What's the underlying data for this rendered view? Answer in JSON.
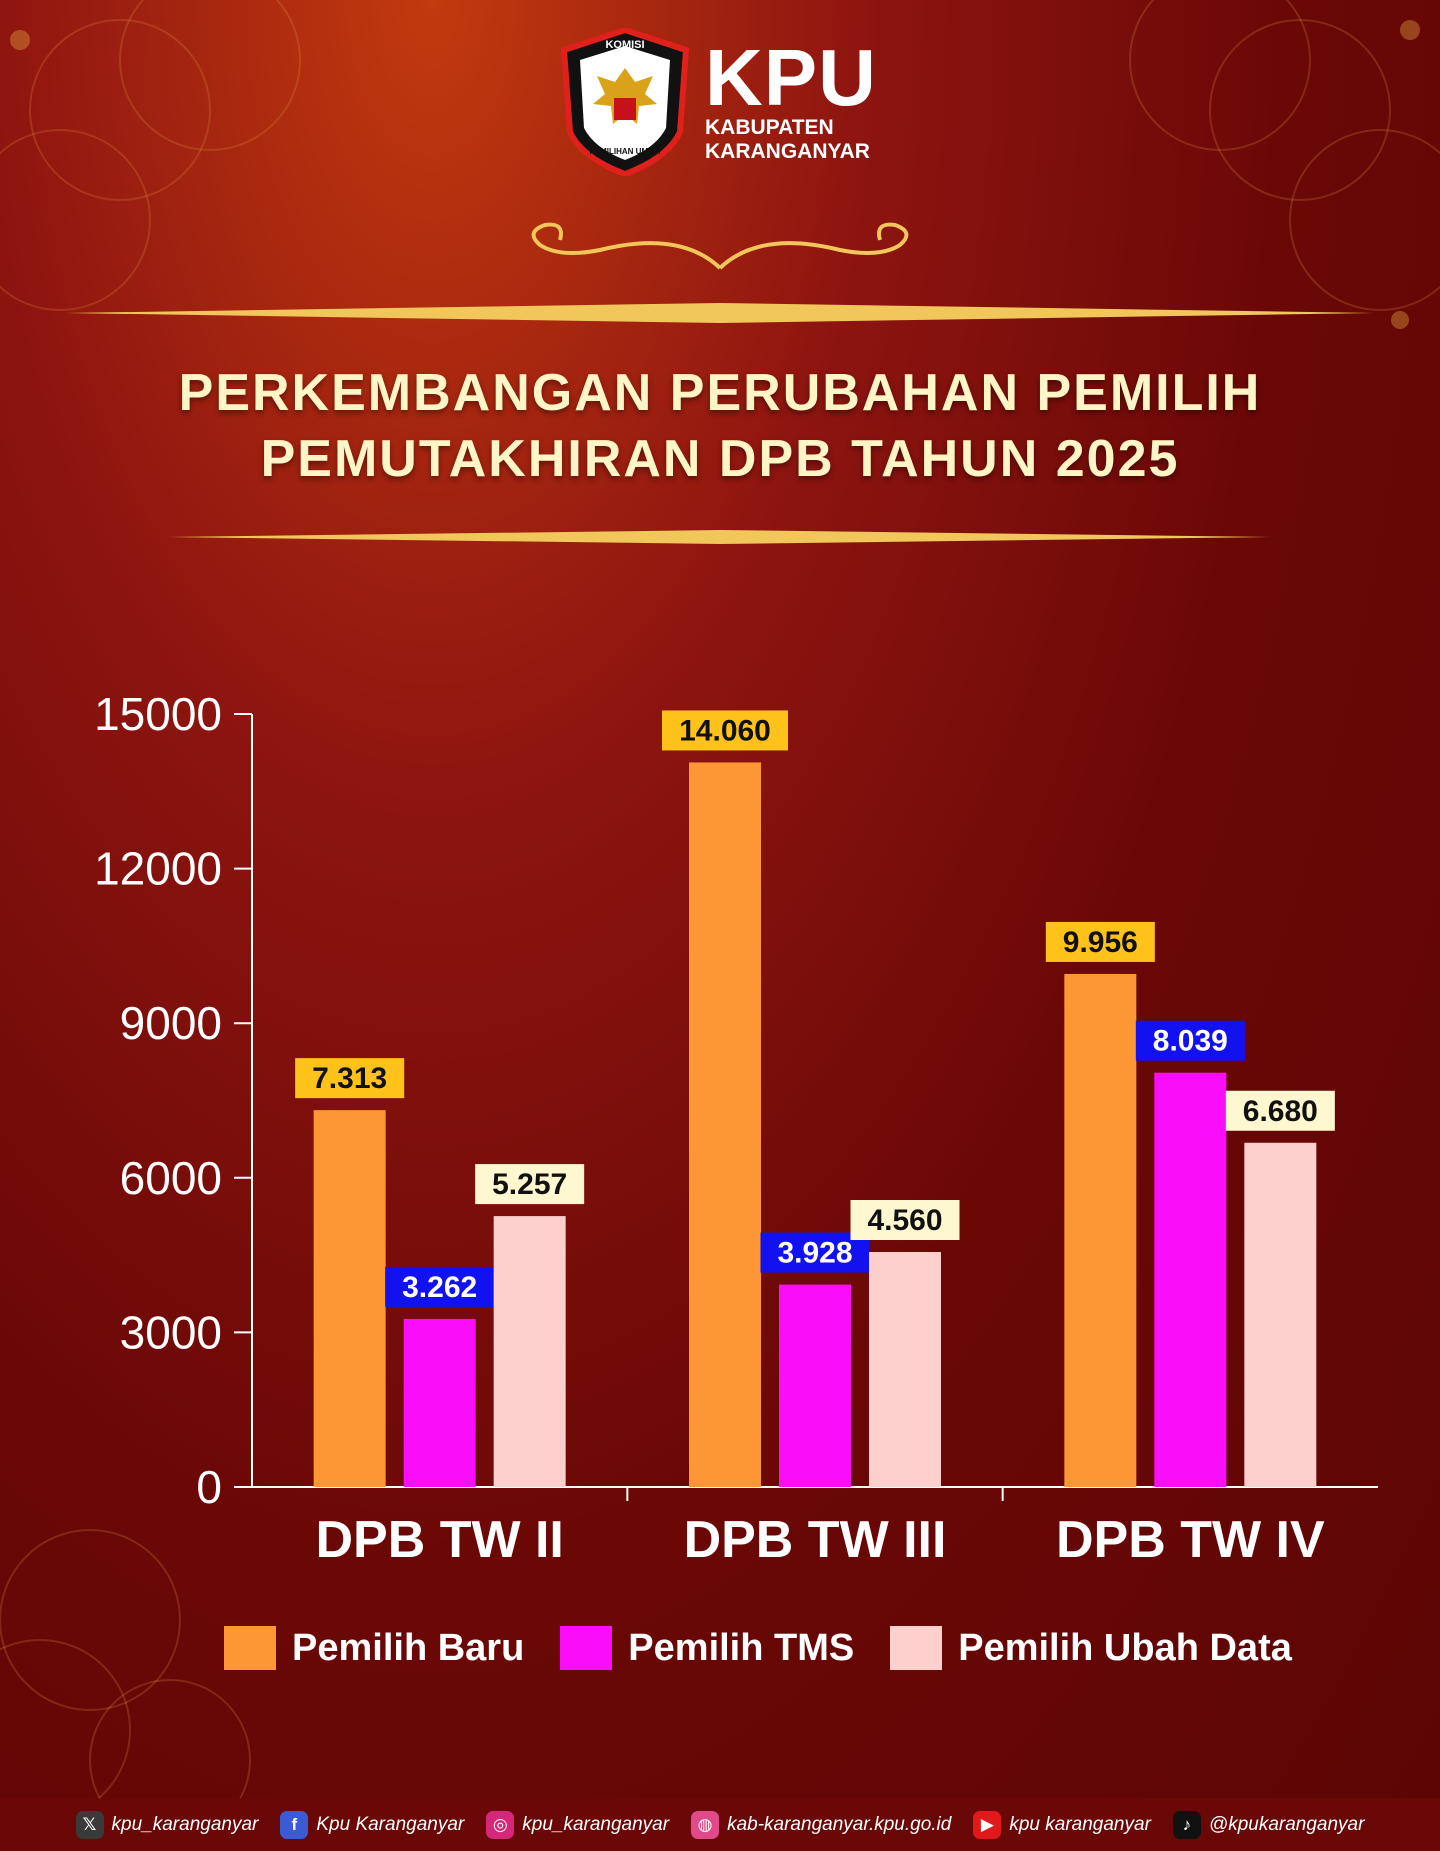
{
  "header": {
    "emblem_top_text": "KOMISI",
    "emblem_bottom_text": "PEMILIHAN UMUM",
    "brand": "KPU",
    "brand_line1": "KABUPATEN",
    "brand_line2": "KARANGANYAR"
  },
  "title": {
    "line1": "PERKEMBANGAN PERUBAHAN PEMILIH",
    "line2": "PEMUTAKHIRAN DPB TAHUN 2025"
  },
  "chart_data": {
    "type": "bar",
    "categories": [
      "DPB TW II",
      "DPB TW III",
      "DPB TW IV"
    ],
    "series": [
      {
        "name": "Pemilih Baru",
        "values": [
          7313,
          14060,
          9956
        ],
        "labels": [
          "7.313",
          "14.060",
          "9.956"
        ],
        "color": "#fd9635",
        "label_bg": "#ffc21b",
        "label_color": "#111111"
      },
      {
        "name": "Pemilih TMS",
        "values": [
          3262,
          3928,
          8039
        ],
        "labels": [
          "3.262",
          "3.928",
          "8.039"
        ],
        "color": "#fa0efa",
        "label_bg": "#1212f0",
        "label_color": "#ffffff"
      },
      {
        "name": "Pemilih Ubah Data",
        "values": [
          5257,
          4560,
          6680
        ],
        "labels": [
          "5.257",
          "4.560",
          "6.680"
        ],
        "color": "#fdd0cd",
        "label_bg": "#fff7cf",
        "label_color": "#111111"
      }
    ],
    "yticks": [
      "0",
      "3000",
      "6000",
      "9000",
      "12000",
      "15000"
    ],
    "ylim": [
      0,
      15000
    ],
    "grid": false,
    "legend": "bottom",
    "xlabel": "",
    "ylabel": ""
  },
  "footer": {
    "items": [
      {
        "icon": "x-icon",
        "text": "kpu_karanganyar",
        "color": "#3a3a3a"
      },
      {
        "icon": "facebook-icon",
        "text": "Kpu Karanganyar",
        "color": "#3b5bd6"
      },
      {
        "icon": "instagram-icon",
        "text": "kpu_karanganyar",
        "color": "#d6287a"
      },
      {
        "icon": "dribbble-icon",
        "text": "kab-karanganyar.kpu.go.id",
        "color": "#e04a8a"
      },
      {
        "icon": "youtube-icon",
        "text": "kpu karanganyar",
        "color": "#e01a1a"
      },
      {
        "icon": "tiktok-icon",
        "text": "@kpukaranganyar",
        "color": "#111111"
      }
    ]
  }
}
